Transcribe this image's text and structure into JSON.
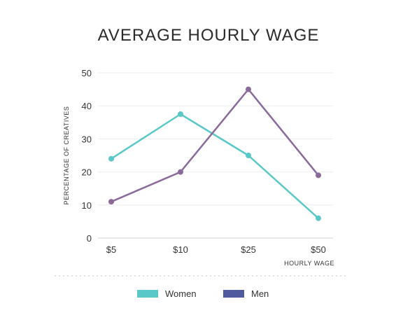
{
  "chart_data": {
    "type": "line",
    "title": "AVERAGE HOURLY WAGE",
    "xlabel": "HOURLY WAGE",
    "ylabel": "PERCENTAGE OF CREATIVES",
    "categories": [
      "$5",
      "$10",
      "$25",
      "$50"
    ],
    "ylim": [
      0,
      50
    ],
    "yticks": [
      0,
      10,
      20,
      30,
      40,
      50
    ],
    "grid": true,
    "legend_position": "bottom",
    "series": [
      {
        "name": "Women",
        "color": "#5ac8c8",
        "values": [
          24,
          37.5,
          25,
          6
        ]
      },
      {
        "name": "Men",
        "color": "#8a6a9b",
        "values": [
          11,
          20,
          45,
          19
        ]
      }
    ],
    "legend_swatch_colors": [
      "#5ac8c8",
      "#4f5b9e"
    ]
  }
}
